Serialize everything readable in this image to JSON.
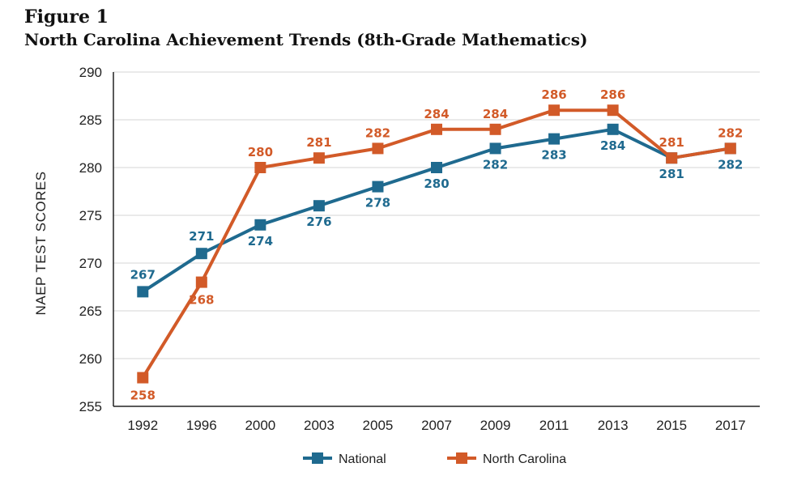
{
  "figure_label": "Figure 1",
  "title": "North Carolina Achievement Trends (8th-Grade Mathematics)",
  "chart_data": {
    "type": "line",
    "ylabel": "NAEP TEST SCORES",
    "xlabel": "",
    "ylim": [
      255,
      290
    ],
    "yticks": [
      255,
      260,
      265,
      270,
      275,
      280,
      285,
      290
    ],
    "grid": true,
    "legend_position": "bottom",
    "categories": [
      "1992",
      "1996",
      "2000",
      "2003",
      "2005",
      "2007",
      "2009",
      "2011",
      "2013",
      "2015",
      "2017"
    ],
    "series": [
      {
        "name": "National",
        "color": "#1f6a8f",
        "values": [
          267,
          271,
          274,
          276,
          278,
          280,
          282,
          283,
          284,
          281,
          282
        ],
        "labels": [
          "267",
          "271",
          "274",
          "276",
          "278",
          "280",
          "282",
          "283",
          "284",
          "281",
          "282"
        ]
      },
      {
        "name": "North Carolina",
        "color": "#d25a28",
        "values": [
          258,
          268,
          280,
          281,
          282,
          284,
          284,
          286,
          286,
          281,
          282
        ],
        "labels": [
          "258",
          "268",
          "280",
          "281",
          "282",
          "284",
          "284",
          "286",
          "286",
          "281",
          "282"
        ]
      }
    ]
  }
}
